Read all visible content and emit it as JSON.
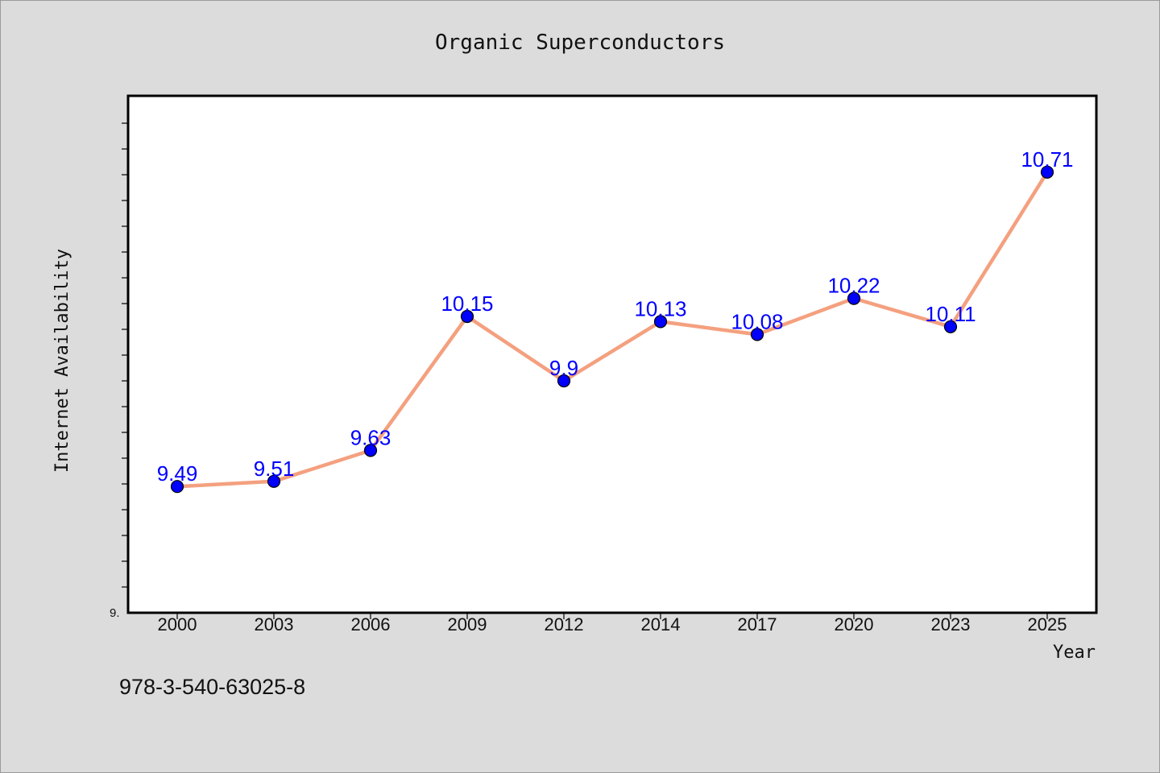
{
  "chart_data": {
    "type": "line",
    "title": "Organic Superconductors",
    "xlabel": "Year",
    "ylabel": "Internet Availability",
    "categories": [
      "2000",
      "2003",
      "2006",
      "2009",
      "2012",
      "2014",
      "2017",
      "2020",
      "2023",
      "2025"
    ],
    "series": [
      {
        "values": [
          9.49,
          9.51,
          9.63,
          10.15,
          9.9,
          10.13,
          10.08,
          10.22,
          10.11,
          10.71
        ]
      }
    ],
    "data_labels": [
      "9.49",
      "9.51",
      "9.63",
      "10.15",
      "9.9",
      "10.13",
      "10.08",
      "10.22",
      "10.11",
      "10.71"
    ],
    "y_tick_label": "9.",
    "ylim": [
      9.0,
      11.0
    ],
    "grid": false,
    "legend": "none",
    "line_color": "#f4a07f",
    "marker_color": "#0000ff",
    "label_color": "#0000ff"
  },
  "footer": {
    "isbn": "978-3-540-63025-8"
  }
}
